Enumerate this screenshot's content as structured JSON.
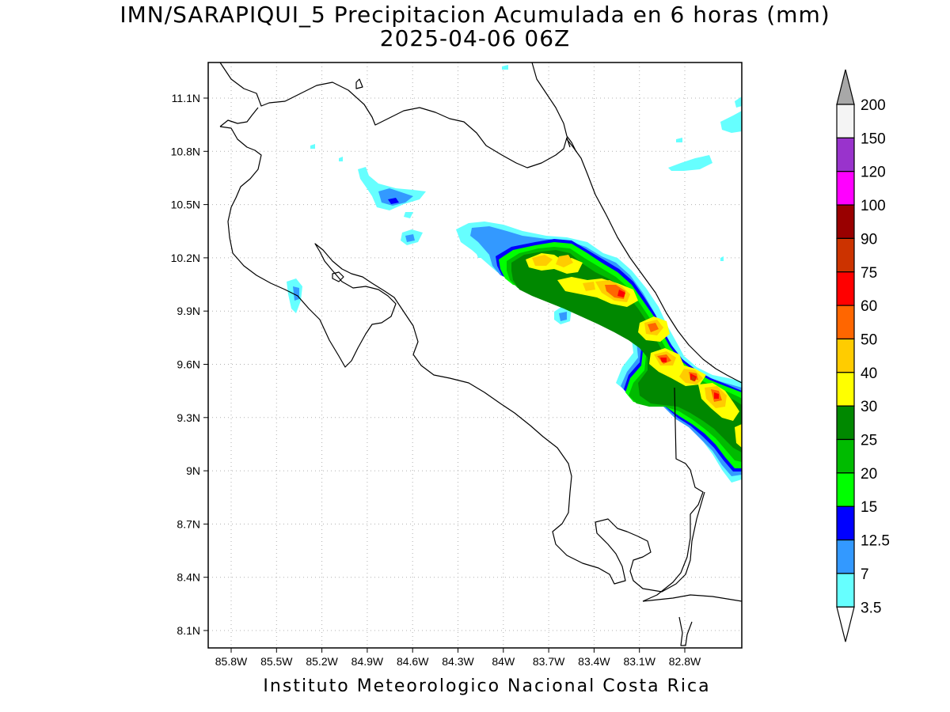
{
  "header": {
    "title_line1": "IMN/SARAPIQUI_5 Precipitacion Acumulada en 6 horas (mm)",
    "title_line2": "2025-04-06 06Z"
  },
  "map": {
    "lon_labels": [
      "85.8W",
      "85.5W",
      "85.2W",
      "84.9W",
      "84.6W",
      "84.3W",
      "84W",
      "83.7W",
      "83.4W",
      "83.1W",
      "82.8W"
    ],
    "lat_labels": [
      "11.1N",
      "10.8N",
      "10.5N",
      "10.2N",
      "9.9N",
      "9.6N",
      "9.3N",
      "9N",
      "8.7N",
      "8.4N",
      "8.1N"
    ]
  },
  "colorbar": {
    "labels": [
      "200",
      "150",
      "120",
      "100",
      "90",
      "75",
      "60",
      "50",
      "40",
      "30",
      "25",
      "20",
      "15",
      "12.5",
      "7",
      "3.5"
    ],
    "colors": [
      "#f4f4f4",
      "#9933cc",
      "#ff00ff",
      "#990000",
      "#cc3300",
      "#ff0000",
      "#ff6600",
      "#ffcc00",
      "#ffff00",
      "#008800",
      "#00bb00",
      "#00ff00",
      "#0000ff",
      "#3399ff",
      "#66ffff"
    ],
    "over_color": "#a8a8a8",
    "under_color": "#ffffff"
  },
  "footer": {
    "text": "Instituto Meteorologico Nacional Costa Rica"
  }
}
